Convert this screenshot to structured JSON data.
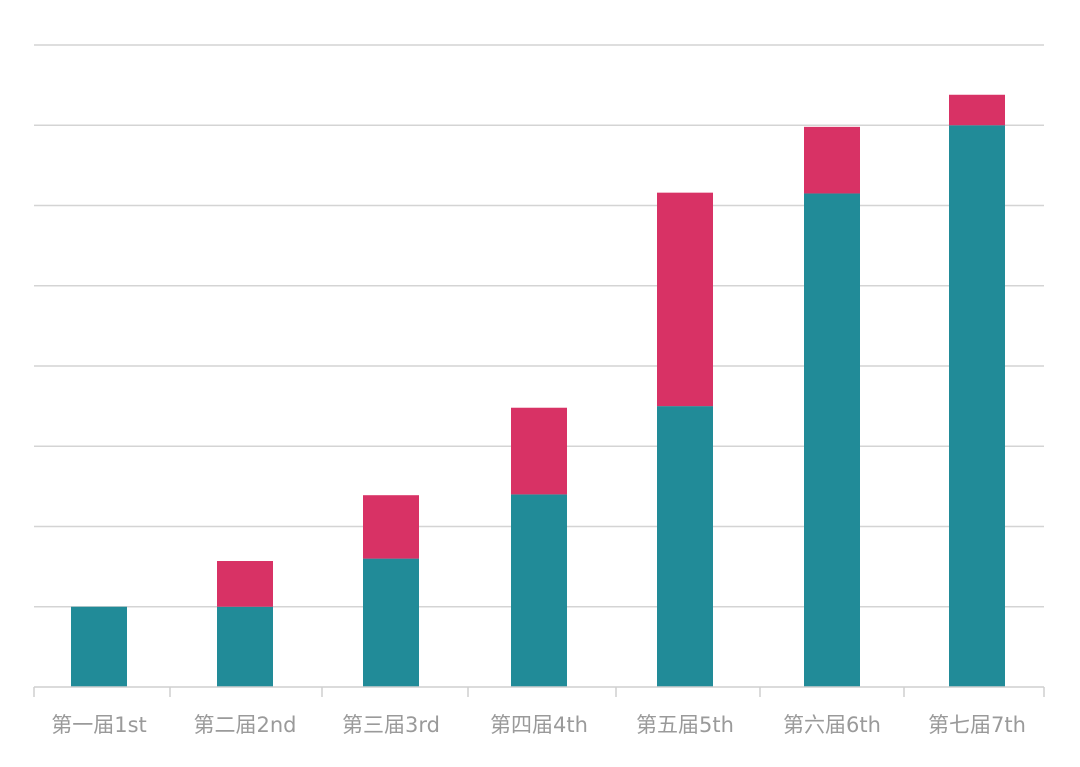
{
  "chart_data": {
    "type": "bar",
    "stacked": true,
    "categories": [
      "第一届1st",
      "第二届2nd",
      "第三届3rd",
      "第四届4th",
      "第五届5th",
      "第六届6th",
      "第七届7th"
    ],
    "series": [
      {
        "values": [
          1.0,
          1.0,
          1.6,
          2.4,
          3.5,
          6.15,
          7.0
        ],
        "color": "#218b98"
      },
      {
        "values": [
          0.0,
          0.57,
          0.79,
          1.08,
          2.66,
          0.83,
          0.38
        ],
        "color": "#d83265"
      }
    ],
    "title": "",
    "xlabel": "",
    "ylabel": "",
    "ylim": [
      0,
      8
    ],
    "yticks_visible": false,
    "grid": true,
    "legend": "none"
  }
}
